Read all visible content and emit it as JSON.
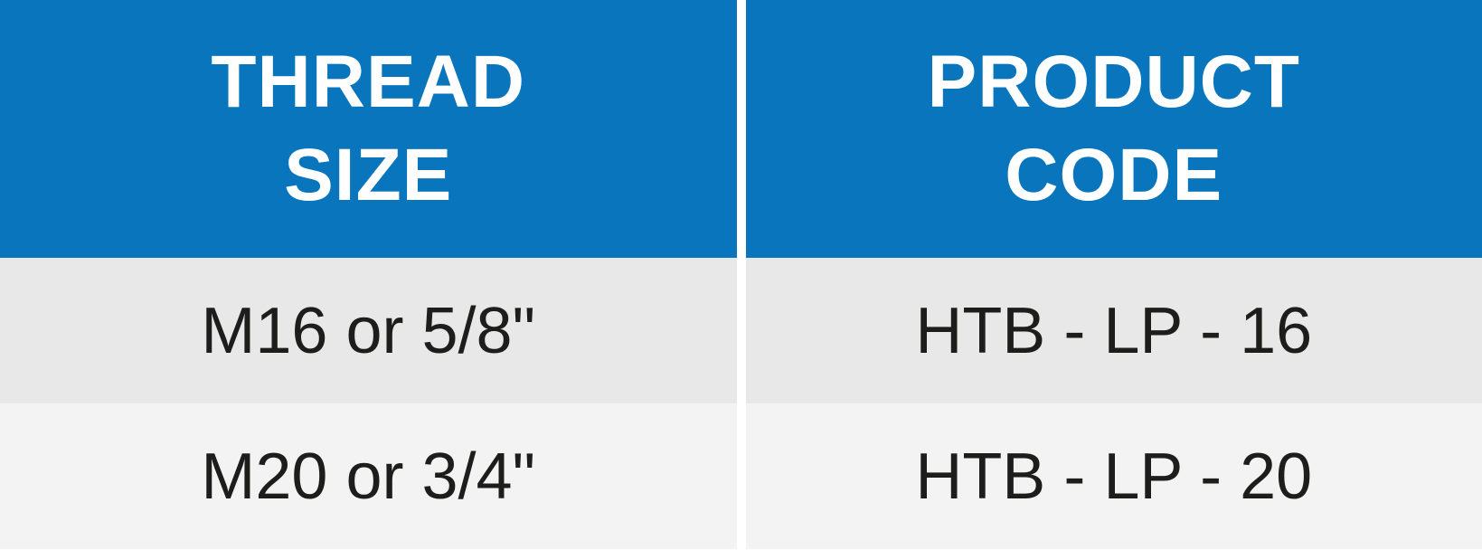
{
  "table": {
    "columns": [
      {
        "header": "THREAD\nSIZE"
      },
      {
        "header": "PRODUCT\nCODE"
      }
    ],
    "rows": [
      [
        "M16 or 5/8\"",
        "HTB - LP - 16"
      ],
      [
        "M20 or 3/4\"",
        "HTB - LP - 20"
      ]
    ],
    "style": {
      "header_bg": "#0875bc",
      "header_fg": "#ffffff",
      "header_fontsize": 82,
      "header_fontweight": 700,
      "data_fg": "#1d1e1c",
      "data_fontsize": 72,
      "row_bg_even": "#e9e8e9",
      "row_bg_odd": "#f4f3f4",
      "divider_color": "#ffffff",
      "divider_width": 10
    }
  }
}
